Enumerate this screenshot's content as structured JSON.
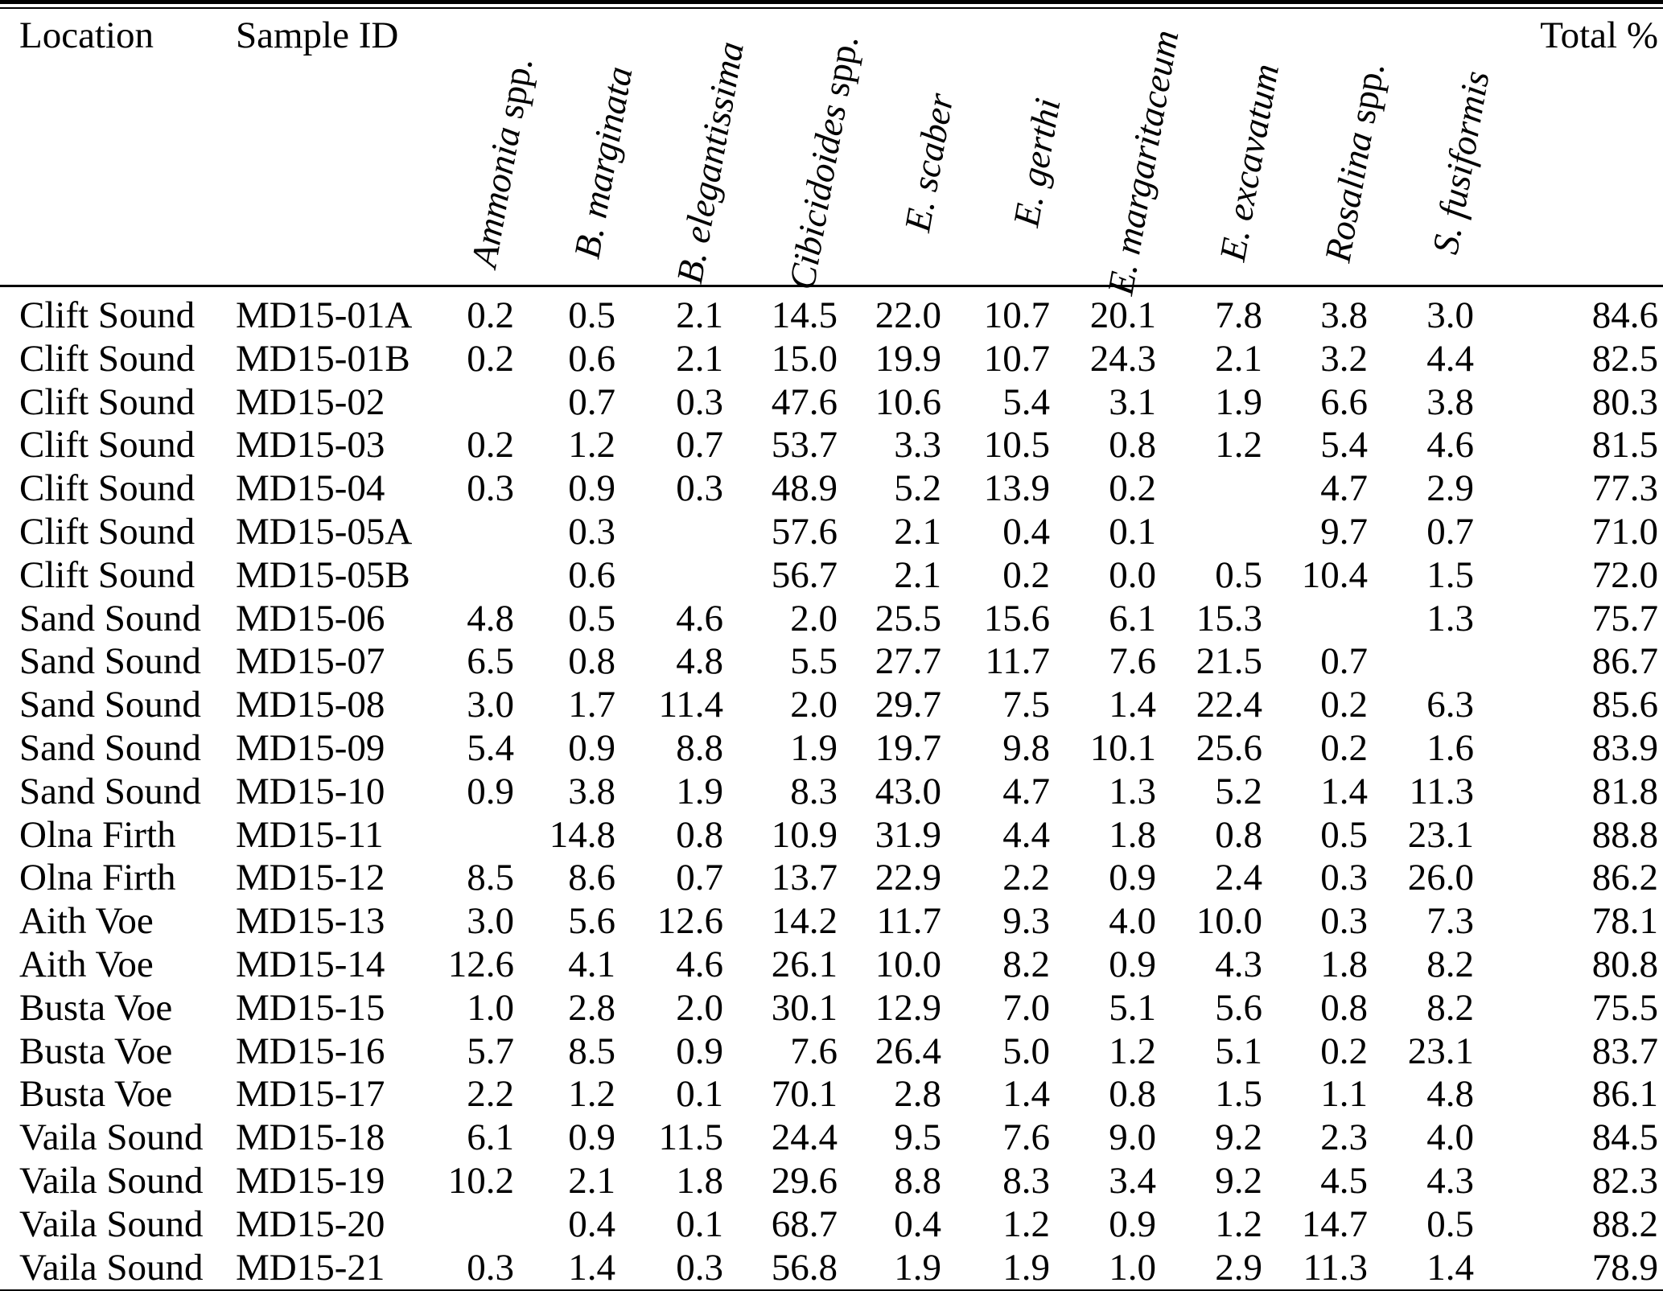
{
  "page": {
    "background_color": "#ffffff",
    "text_color": "#000000"
  },
  "table": {
    "headers": {
      "location": "Location",
      "sample_id": "Sample ID",
      "total": "Total %",
      "species": [
        {
          "italic": "Ammonia",
          "roman": "spp."
        },
        {
          "italic": "B. marginata",
          "roman": ""
        },
        {
          "italic": "B. elegantissima",
          "roman": ""
        },
        {
          "italic": "Cibicidoides",
          "roman": "spp."
        },
        {
          "italic": "E. scaber",
          "roman": ""
        },
        {
          "italic": "E. gerthi",
          "roman": ""
        },
        {
          "italic": "E. margaritaceum",
          "roman": ""
        },
        {
          "italic": "E. excavatum",
          "roman": ""
        },
        {
          "italic": "Rosalina",
          "roman": "spp."
        },
        {
          "italic": "S. fusiformis",
          "roman": ""
        }
      ]
    },
    "rows": [
      {
        "location": "Clift Sound",
        "sample_id": "MD15-01A",
        "values": [
          "0.2",
          "0.5",
          "2.1",
          "14.5",
          "22.0",
          "10.7",
          "20.1",
          "7.8",
          "3.8",
          "3.0"
        ],
        "total": "84.6"
      },
      {
        "location": "Clift Sound",
        "sample_id": "MD15-01B",
        "values": [
          "0.2",
          "0.6",
          "2.1",
          "15.0",
          "19.9",
          "10.7",
          "24.3",
          "2.1",
          "3.2",
          "4.4"
        ],
        "total": "82.5"
      },
      {
        "location": "Clift Sound",
        "sample_id": "MD15-02",
        "values": [
          "",
          "0.7",
          "0.3",
          "47.6",
          "10.6",
          "5.4",
          "3.1",
          "1.9",
          "6.6",
          "3.8"
        ],
        "total": "80.3"
      },
      {
        "location": "Clift Sound",
        "sample_id": "MD15-03",
        "values": [
          "0.2",
          "1.2",
          "0.7",
          "53.7",
          "3.3",
          "10.5",
          "0.8",
          "1.2",
          "5.4",
          "4.6"
        ],
        "total": "81.5"
      },
      {
        "location": "Clift Sound",
        "sample_id": "MD15-04",
        "values": [
          "0.3",
          "0.9",
          "0.3",
          "48.9",
          "5.2",
          "13.9",
          "0.2",
          "",
          "4.7",
          "2.9"
        ],
        "total": "77.3"
      },
      {
        "location": "Clift Sound",
        "sample_id": "MD15-05A",
        "values": [
          "",
          "0.3",
          "",
          "57.6",
          "2.1",
          "0.4",
          "0.1",
          "",
          "9.7",
          "0.7"
        ],
        "total": "71.0"
      },
      {
        "location": "Clift Sound",
        "sample_id": "MD15-05B",
        "values": [
          "",
          "0.6",
          "",
          "56.7",
          "2.1",
          "0.2",
          "0.0",
          "0.5",
          "10.4",
          "1.5"
        ],
        "total": "72.0"
      },
      {
        "location": "Sand Sound",
        "sample_id": "MD15-06",
        "values": [
          "4.8",
          "0.5",
          "4.6",
          "2.0",
          "25.5",
          "15.6",
          "6.1",
          "15.3",
          "",
          "1.3"
        ],
        "total": "75.7"
      },
      {
        "location": "Sand Sound",
        "sample_id": "MD15-07",
        "values": [
          "6.5",
          "0.8",
          "4.8",
          "5.5",
          "27.7",
          "11.7",
          "7.6",
          "21.5",
          "0.7",
          ""
        ],
        "total": "86.7"
      },
      {
        "location": "Sand Sound",
        "sample_id": "MD15-08",
        "values": [
          "3.0",
          "1.7",
          "11.4",
          "2.0",
          "29.7",
          "7.5",
          "1.4",
          "22.4",
          "0.2",
          "6.3"
        ],
        "total": "85.6"
      },
      {
        "location": "Sand Sound",
        "sample_id": "MD15-09",
        "values": [
          "5.4",
          "0.9",
          "8.8",
          "1.9",
          "19.7",
          "9.8",
          "10.1",
          "25.6",
          "0.2",
          "1.6"
        ],
        "total": "83.9"
      },
      {
        "location": "Sand Sound",
        "sample_id": "MD15-10",
        "values": [
          "0.9",
          "3.8",
          "1.9",
          "8.3",
          "43.0",
          "4.7",
          "1.3",
          "5.2",
          "1.4",
          "11.3"
        ],
        "total": "81.8"
      },
      {
        "location": "Olna Firth",
        "sample_id": "MD15-11",
        "values": [
          "",
          "14.8",
          "0.8",
          "10.9",
          "31.9",
          "4.4",
          "1.8",
          "0.8",
          "0.5",
          "23.1"
        ],
        "total": "88.8"
      },
      {
        "location": "Olna Firth",
        "sample_id": "MD15-12",
        "values": [
          "8.5",
          "8.6",
          "0.7",
          "13.7",
          "22.9",
          "2.2",
          "0.9",
          "2.4",
          "0.3",
          "26.0"
        ],
        "total": "86.2"
      },
      {
        "location": "Aith Voe",
        "sample_id": "MD15-13",
        "values": [
          "3.0",
          "5.6",
          "12.6",
          "14.2",
          "11.7",
          "9.3",
          "4.0",
          "10.0",
          "0.3",
          "7.3"
        ],
        "total": "78.1"
      },
      {
        "location": "Aith Voe",
        "sample_id": "MD15-14",
        "values": [
          "12.6",
          "4.1",
          "4.6",
          "26.1",
          "10.0",
          "8.2",
          "0.9",
          "4.3",
          "1.8",
          "8.2"
        ],
        "total": "80.8"
      },
      {
        "location": "Busta Voe",
        "sample_id": "MD15-15",
        "values": [
          "1.0",
          "2.8",
          "2.0",
          "30.1",
          "12.9",
          "7.0",
          "5.1",
          "5.6",
          "0.8",
          "8.2"
        ],
        "total": "75.5"
      },
      {
        "location": "Busta Voe",
        "sample_id": "MD15-16",
        "values": [
          "5.7",
          "8.5",
          "0.9",
          "7.6",
          "26.4",
          "5.0",
          "1.2",
          "5.1",
          "0.2",
          "23.1"
        ],
        "total": "83.7"
      },
      {
        "location": "Busta Voe",
        "sample_id": "MD15-17",
        "values": [
          "2.2",
          "1.2",
          "0.1",
          "70.1",
          "2.8",
          "1.4",
          "0.8",
          "1.5",
          "1.1",
          "4.8"
        ],
        "total": "86.1"
      },
      {
        "location": "Vaila Sound",
        "sample_id": "MD15-18",
        "values": [
          "6.1",
          "0.9",
          "11.5",
          "24.4",
          "9.5",
          "7.6",
          "9.0",
          "9.2",
          "2.3",
          "4.0"
        ],
        "total": "84.5"
      },
      {
        "location": "Vaila Sound",
        "sample_id": "MD15-19",
        "values": [
          "10.2",
          "2.1",
          "1.8",
          "29.6",
          "8.8",
          "8.3",
          "3.4",
          "9.2",
          "4.5",
          "4.3"
        ],
        "total": "82.3"
      },
      {
        "location": "Vaila Sound",
        "sample_id": "MD15-20",
        "values": [
          "",
          "0.4",
          "0.1",
          "68.7",
          "0.4",
          "1.2",
          "0.9",
          "1.2",
          "14.7",
          "0.5"
        ],
        "total": "88.2"
      },
      {
        "location": "Vaila Sound",
        "sample_id": "MD15-21",
        "values": [
          "0.3",
          "1.4",
          "0.3",
          "56.8",
          "1.9",
          "1.9",
          "1.0",
          "2.9",
          "11.3",
          "1.4"
        ],
        "total": "78.9"
      }
    ]
  }
}
